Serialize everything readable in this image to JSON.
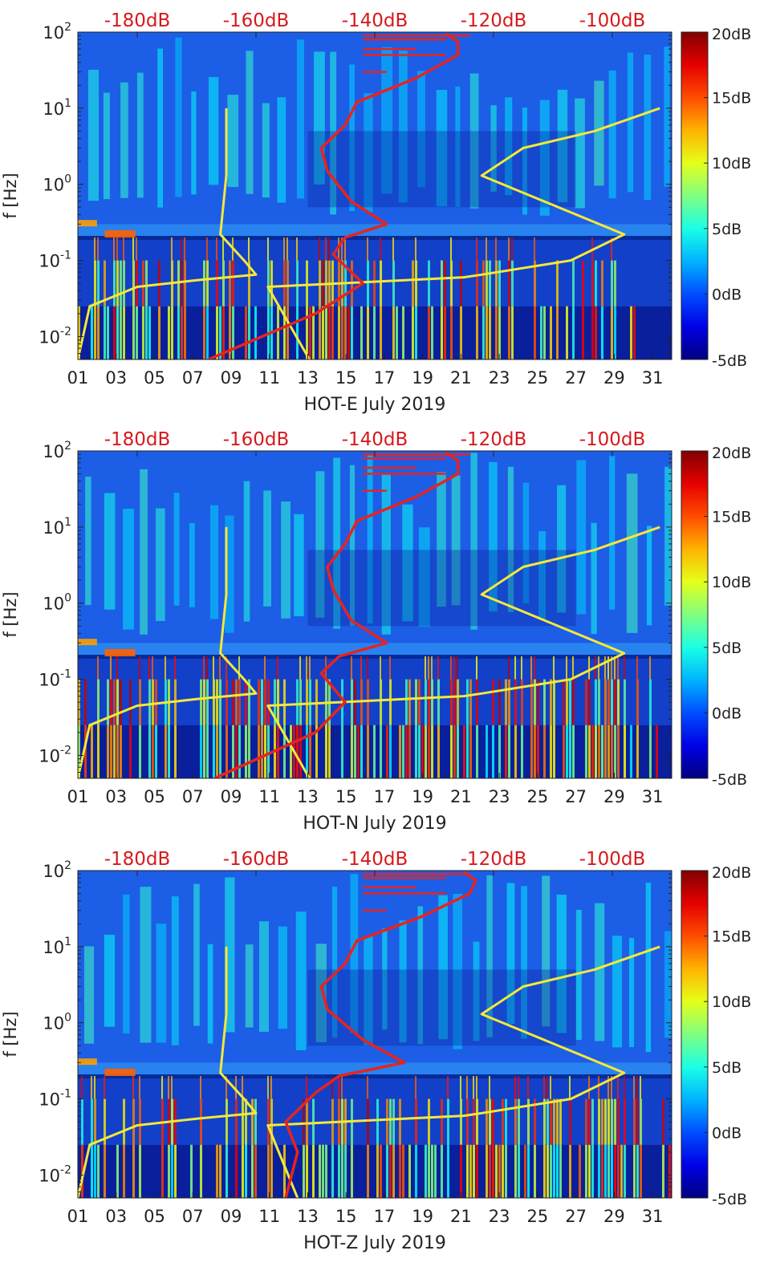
{
  "figure": {
    "colorbar_ticks": [
      "20dB",
      "15dB",
      "10dB",
      "5dB",
      "0dB",
      "-5dB"
    ],
    "top_ticks": [
      "-180dB",
      "-160dB",
      "-140dB",
      "-120dB",
      "-100dB"
    ],
    "y_ticks": [
      {
        "base": "10",
        "exp": "2"
      },
      {
        "base": "10",
        "exp": "1"
      },
      {
        "base": "10",
        "exp": "0"
      },
      {
        "base": "10",
        "exp": "-1"
      },
      {
        "base": "10",
        "exp": "-2"
      }
    ],
    "x_ticks": [
      "01",
      "03",
      "05",
      "07",
      "09",
      "11",
      "13",
      "15",
      "17",
      "19",
      "21",
      "23",
      "25",
      "27",
      "29",
      "31"
    ],
    "ylabel": "f [Hz]",
    "colors": {
      "red_curve": "#e8231f",
      "yellow_curve": "#f5e83a",
      "top_tick_text": "#d7191c",
      "bg_low": "#0a1f9c",
      "bg_mid": "#1d5ee6"
    }
  },
  "chart_data": [
    {
      "type": "heatmap",
      "title": "",
      "xlabel": "HOT-E July 2019",
      "ylabel": "f [Hz]",
      "x_range": [
        1,
        32
      ],
      "y_range": [
        0.005,
        100
      ],
      "y_scale": "log",
      "color_range_db": [
        -5,
        20
      ],
      "top_axis_db": [
        -190,
        -90
      ],
      "red_curve": {
        "db": [
          -168,
          -150,
          -142,
          -147,
          -145,
          -138,
          -144,
          -148,
          -149,
          -145,
          -143,
          -133,
          -126,
          -126,
          -128
        ],
        "freq": [
          0.005,
          0.02,
          0.05,
          0.12,
          0.2,
          0.3,
          0.6,
          1.5,
          3,
          6,
          12,
          25,
          50,
          75,
          95
        ]
      },
      "yellow_curve_low": {
        "db": [
          -190,
          -188,
          -180,
          -170,
          -160,
          -162,
          -166,
          -165,
          -165
        ],
        "freq": [
          0.005,
          0.025,
          0.045,
          0.055,
          0.065,
          0.1,
          0.22,
          1.3,
          10
        ]
      },
      "yellow_curve_high": {
        "db": [
          -151,
          -158,
          -125,
          -122,
          -107,
          -98,
          -122,
          -115,
          -103,
          -92
        ],
        "freq": [
          0.005,
          0.045,
          0.06,
          0.065,
          0.1,
          0.22,
          1.3,
          3,
          5,
          10
        ]
      }
    },
    {
      "type": "heatmap",
      "title": "",
      "xlabel": "HOT-N July 2019",
      "ylabel": "f [Hz]",
      "x_range": [
        1,
        32
      ],
      "y_range": [
        0.005,
        100
      ],
      "y_scale": "log",
      "color_range_db": [
        -5,
        20
      ],
      "top_axis_db": [
        -190,
        -90
      ],
      "red_curve": {
        "db": [
          -167,
          -150,
          -145,
          -149,
          -146,
          -138,
          -144,
          -147,
          -148,
          -145,
          -143,
          -133,
          -126,
          -126,
          -128
        ],
        "freq": [
          0.005,
          0.02,
          0.05,
          0.12,
          0.2,
          0.3,
          0.6,
          1.5,
          3,
          6,
          12,
          25,
          50,
          75,
          95
        ]
      },
      "yellow_curve_low": {
        "db": [
          -190,
          -188,
          -180,
          -170,
          -160,
          -162,
          -166,
          -165,
          -165
        ],
        "freq": [
          0.005,
          0.025,
          0.045,
          0.055,
          0.065,
          0.1,
          0.22,
          1.3,
          10
        ]
      },
      "yellow_curve_high": {
        "db": [
          -151,
          -158,
          -125,
          -122,
          -107,
          -98,
          -122,
          -115,
          -103,
          -92
        ],
        "freq": [
          0.005,
          0.045,
          0.06,
          0.065,
          0.1,
          0.22,
          1.3,
          3,
          5,
          10
        ]
      }
    },
    {
      "type": "heatmap",
      "title": "",
      "xlabel": "HOT-Z July 2019",
      "ylabel": "f [Hz]",
      "x_range": [
        1,
        32
      ],
      "y_range": [
        0.005,
        100
      ],
      "y_scale": "log",
      "color_range_db": [
        -5,
        20
      ],
      "top_axis_db": [
        -190,
        -90
      ],
      "red_curve": {
        "db": [
          -155,
          -153,
          -155,
          -150,
          -146,
          -135,
          -142,
          -148,
          -149,
          -145,
          -143,
          -132,
          -124,
          -123,
          -125
        ],
        "freq": [
          0.005,
          0.02,
          0.05,
          0.12,
          0.2,
          0.3,
          0.6,
          1.5,
          3,
          6,
          12,
          25,
          50,
          75,
          95
        ]
      },
      "yellow_curve_low": {
        "db": [
          -190,
          -188,
          -180,
          -170,
          -160,
          -162,
          -166,
          -165,
          -165
        ],
        "freq": [
          0.005,
          0.025,
          0.045,
          0.055,
          0.065,
          0.1,
          0.22,
          1.3,
          10
        ]
      },
      "yellow_curve_high": {
        "db": [
          -153,
          -158,
          -125,
          -122,
          -107,
          -98,
          -122,
          -115,
          -103,
          -92
        ],
        "freq": [
          0.005,
          0.045,
          0.06,
          0.065,
          0.1,
          0.22,
          1.3,
          3,
          5,
          10
        ]
      }
    }
  ]
}
